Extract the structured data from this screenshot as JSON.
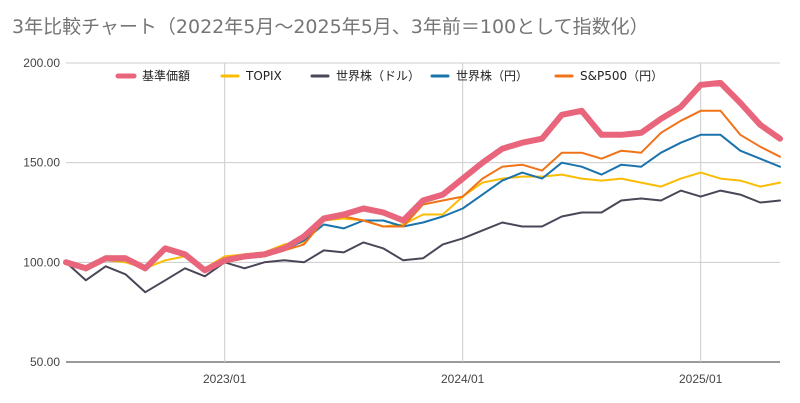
{
  "chart_data": {
    "type": "line",
    "title": "3年比較チャート（2022年5月～2025年5月、3年前＝100として指数化）",
    "xlabel": "",
    "ylabel": "",
    "ylim": [
      50,
      200
    ],
    "y_ticks": [
      "200.00",
      "150.00",
      "100.00",
      "50.00"
    ],
    "x_tick_labels": [
      "2023/01",
      "2024/01",
      "2025/01"
    ],
    "x_tick_dates": [
      "2023-01",
      "2024-01",
      "2025-01"
    ],
    "x": [
      "2022-05",
      "2022-06",
      "2022-07",
      "2022-08",
      "2022-09",
      "2022-10",
      "2022-11",
      "2022-12",
      "2023-01",
      "2023-02",
      "2023-03",
      "2023-04",
      "2023-05",
      "2023-06",
      "2023-07",
      "2023-08",
      "2023-09",
      "2023-10",
      "2023-11",
      "2023-12",
      "2024-01",
      "2024-02",
      "2024-03",
      "2024-04",
      "2024-05",
      "2024-06",
      "2024-07",
      "2024-08",
      "2024-09",
      "2024-10",
      "2024-11",
      "2024-12",
      "2025-01",
      "2025-02",
      "2025-03",
      "2025-04",
      "2025-05"
    ],
    "grid": true,
    "legend_position": "top",
    "series": [
      {
        "name": "基準価額",
        "color": "#e8657c",
        "values": [
          100,
          97,
          102,
          102,
          97,
          107,
          104,
          96,
          101,
          103,
          104,
          107,
          113,
          122,
          124,
          127,
          125,
          121,
          131,
          134,
          142,
          150,
          157,
          160,
          162,
          174,
          176,
          164,
          164,
          165,
          172,
          178,
          189,
          190,
          180,
          169,
          162
        ]
      },
      {
        "name": "TOPIX",
        "color": "#fbbc04",
        "values": [
          100,
          98,
          101,
          100,
          97,
          101,
          103,
          97,
          103,
          104,
          105,
          109,
          110,
          121,
          122,
          121,
          118,
          119,
          124,
          124,
          133,
          140,
          142,
          143,
          143,
          144,
          142,
          141,
          142,
          140,
          138,
          142,
          145,
          142,
          141,
          138,
          140
        ]
      },
      {
        "name": "世界株（ドル）",
        "color": "#4b4657",
        "values": [
          100,
          91,
          98,
          94,
          85,
          91,
          97,
          93,
          100,
          97,
          100,
          101,
          100,
          106,
          105,
          110,
          107,
          101,
          102,
          109,
          112,
          116,
          120,
          118,
          118,
          123,
          125,
          125,
          131,
          132,
          131,
          136,
          133,
          136,
          134,
          130,
          131
        ]
      },
      {
        "name": "世界株（円）",
        "color": "#1a73ab",
        "values": [
          100,
          96,
          101,
          101,
          96,
          106,
          105,
          96,
          100,
          102,
          103,
          106,
          111,
          119,
          117,
          121,
          121,
          118,
          120,
          123,
          127,
          134,
          141,
          145,
          142,
          150,
          148,
          144,
          149,
          148,
          155,
          160,
          164,
          164,
          156,
          152,
          148
        ]
      },
      {
        "name": "S&P500（円）",
        "color": "#f07318",
        "values": [
          100,
          96,
          103,
          103,
          97,
          108,
          105,
          97,
          100,
          104,
          103,
          106,
          109,
          121,
          123,
          121,
          118,
          118,
          129,
          131,
          133,
          142,
          148,
          149,
          146,
          155,
          155,
          152,
          156,
          155,
          165,
          171,
          176,
          176,
          164,
          158,
          153
        ]
      }
    ]
  }
}
